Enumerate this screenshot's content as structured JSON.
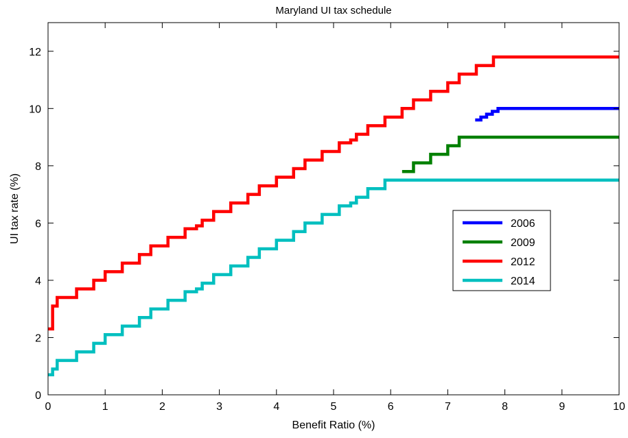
{
  "chart_data": {
    "type": "line",
    "title": "Maryland UI tax schedule",
    "xlabel": "Benefit Ratio (%)",
    "ylabel": "UI tax rate (%)",
    "xlim": [
      0,
      10
    ],
    "ylim": [
      0,
      13
    ],
    "xticks": [
      0,
      1,
      2,
      3,
      4,
      5,
      6,
      7,
      8,
      9,
      10
    ],
    "yticks": [
      0,
      2,
      4,
      6,
      8,
      10,
      12
    ],
    "grid": false,
    "legend_position": "center-right",
    "step_style": "step-after",
    "series": [
      {
        "name": "2012",
        "color": "#ff0000",
        "x": [
          0,
          0.08,
          0.16,
          0.5,
          0.8,
          1.0,
          1.3,
          1.6,
          1.8,
          2.1,
          2.4,
          2.6,
          2.7,
          2.9,
          3.2,
          3.5,
          3.7,
          4.0,
          4.3,
          4.5,
          4.8,
          5.1,
          5.3,
          5.4,
          5.6,
          5.9,
          6.2,
          6.4,
          6.7,
          7.0,
          7.2,
          7.5,
          7.8,
          10.0
        ],
        "y": [
          2.3,
          3.1,
          3.4,
          3.7,
          4.0,
          4.3,
          4.6,
          4.9,
          5.2,
          5.5,
          5.8,
          5.9,
          6.1,
          6.4,
          6.7,
          7.0,
          7.3,
          7.6,
          7.9,
          8.2,
          8.5,
          8.8,
          8.9,
          9.1,
          9.4,
          9.7,
          10.0,
          10.3,
          10.6,
          10.9,
          11.2,
          11.5,
          11.8,
          11.8
        ]
      },
      {
        "name": "2014",
        "color": "#00bfbf",
        "x": [
          0,
          0.08,
          0.16,
          0.5,
          0.8,
          1.0,
          1.3,
          1.6,
          1.8,
          2.1,
          2.4,
          2.6,
          2.7,
          2.9,
          3.2,
          3.5,
          3.7,
          4.0,
          4.3,
          4.5,
          4.8,
          5.1,
          5.3,
          5.4,
          5.6,
          5.9,
          10.0
        ],
        "y": [
          0.7,
          0.9,
          1.2,
          1.5,
          1.8,
          2.1,
          2.4,
          2.7,
          3.0,
          3.3,
          3.6,
          3.7,
          3.9,
          4.2,
          4.5,
          4.8,
          5.1,
          5.4,
          5.7,
          6.0,
          6.3,
          6.6,
          6.7,
          6.9,
          7.2,
          7.5,
          7.5
        ]
      },
      {
        "name": "2009",
        "color": "#008000",
        "x": [
          6.2,
          6.4,
          6.7,
          7.0,
          7.2,
          10.0
        ],
        "y": [
          7.8,
          8.1,
          8.4,
          8.7,
          9.0,
          9.0
        ]
      },
      {
        "name": "2006",
        "color": "#0000ff",
        "x": [
          7.48,
          7.58,
          7.68,
          7.78,
          7.88,
          10.0
        ],
        "y": [
          9.6,
          9.7,
          9.8,
          9.9,
          10.0,
          10.0
        ]
      }
    ],
    "legend": [
      "2006",
      "2009",
      "2012",
      "2014"
    ]
  }
}
